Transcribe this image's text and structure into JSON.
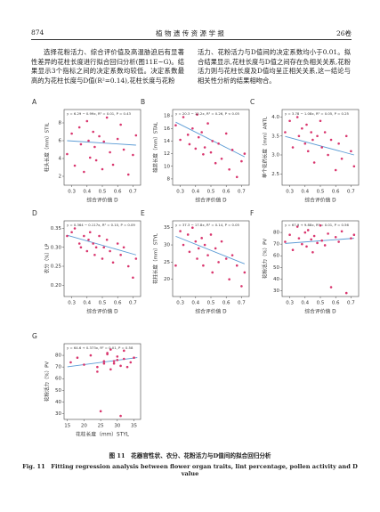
{
  "header": {
    "page": "874",
    "journal": "植 物 遗 传 资 源 学 报",
    "volume": "26卷"
  },
  "body": {
    "left": "选择花粉活力、综合评价值及高温胁迫后有显著性差异的花柱长度进行拟合回归分析(图11E~G)。结果显示3个指标之间的决定系数均较低。决定系数最高的为花柱长度与D值(R²=0.14),花柱长度与花粉",
    "right": "活力、花粉活力与D值间的决定系数均小于0.01。拟合结果显示,花柱长度与D值之间存在负相关关系,花粉活力则与花柱长度及D值均呈正相关关系,这一结论与相关性分析的结果相吻合。"
  },
  "caption": {
    "zh": "图 11　花器官性状、衣分、花粉活力与D值间的拟合回归分析",
    "en": "Fig. 11　Fitting regression analysis between flower organ traits, lint percentage, pollen activity and D value"
  },
  "chart_data": [
    {
      "type": "scatter",
      "panel": "A",
      "equation": "y = 6.29 − 0.99x, R² = 0.01, P = 0.43",
      "xlabel": "综合评价值 D",
      "ylabel": "柱头长度（mm）STIL",
      "x": [
        0.27,
        0.3,
        0.32,
        0.35,
        0.36,
        0.38,
        0.4,
        0.41,
        0.42,
        0.44,
        0.45,
        0.46,
        0.48,
        0.5,
        0.51,
        0.53,
        0.55,
        0.57,
        0.6,
        0.62,
        0.64,
        0.67,
        0.7,
        0.72
      ],
      "y": [
        4.5,
        6.8,
        3.2,
        7.5,
        5.6,
        2.5,
        8.2,
        6.0,
        4.1,
        7.0,
        5.3,
        3.8,
        6.5,
        2.8,
        5.9,
        8.6,
        4.7,
        3.3,
        6.2,
        7.8,
        5.0,
        2.2,
        4.4,
        6.6
      ],
      "trendline": {
        "x": [
          0.27,
          0.72
        ],
        "y": [
          6.0,
          5.5
        ]
      },
      "xlim": [
        0.25,
        0.75
      ],
      "ylim": [
        1,
        9.5
      ],
      "xticks": [
        0.3,
        0.4,
        0.5,
        0.6,
        0.7
      ],
      "yticks": [
        2,
        4,
        6,
        8
      ],
      "color": "#d9366e",
      "line_color": "#5b9bd5"
    },
    {
      "type": "scatter",
      "panel": "B",
      "equation": "y = 20.3 − 12.2x, R² = 0.26, P < 0.05",
      "xlabel": "综合评价值 D",
      "ylabel": "雄蕊长度（mm）STAL",
      "x": [
        0.27,
        0.3,
        0.32,
        0.35,
        0.36,
        0.38,
        0.4,
        0.41,
        0.42,
        0.44,
        0.45,
        0.46,
        0.48,
        0.5,
        0.51,
        0.53,
        0.55,
        0.57,
        0.6,
        0.62,
        0.64,
        0.67,
        0.7,
        0.72
      ],
      "y": [
        16.5,
        14.2,
        17.8,
        15.0,
        13.5,
        16.0,
        12.8,
        18.2,
        14.6,
        15.4,
        11.9,
        13.0,
        16.8,
        12.2,
        14.0,
        10.5,
        13.6,
        11.2,
        15.2,
        9.5,
        12.6,
        8.3,
        10.8,
        12.0
      ],
      "trendline": {
        "x": [
          0.27,
          0.72
        ],
        "y": [
          17.0,
          11.5
        ]
      },
      "xlim": [
        0.25,
        0.75
      ],
      "ylim": [
        7,
        19
      ],
      "xticks": [
        0.3,
        0.4,
        0.5,
        0.6,
        0.7
      ],
      "yticks": [
        8,
        10,
        12,
        14,
        16,
        18
      ],
      "color": "#d9366e",
      "line_color": "#5b9bd5"
    },
    {
      "type": "scatter",
      "panel": "C",
      "equation": "y = 3.78 − 1.08x, R² = 0.05, P = 0.25",
      "xlabel": "综合评价值 D",
      "ylabel": "单个花药长度（mm）ANTL",
      "x": [
        0.27,
        0.3,
        0.32,
        0.35,
        0.36,
        0.38,
        0.4,
        0.41,
        0.42,
        0.44,
        0.45,
        0.46,
        0.48,
        0.5,
        0.51,
        0.53,
        0.55,
        0.57,
        0.6,
        0.62,
        0.64,
        0.67,
        0.7,
        0.72
      ],
      "y": [
        3.6,
        3.9,
        3.2,
        4.0,
        3.5,
        3.7,
        3.3,
        3.8,
        3.1,
        3.6,
        3.4,
        2.8,
        3.5,
        3.9,
        3.2,
        3.6,
        3.0,
        3.4,
        2.6,
        3.3,
        2.9,
        3.5,
        3.1,
        2.7
      ],
      "trendline": {
        "x": [
          0.27,
          0.72
        ],
        "y": [
          3.49,
          3.0
        ]
      },
      "xlim": [
        0.25,
        0.75
      ],
      "ylim": [
        2.2,
        4.2
      ],
      "xticks": [
        0.3,
        0.4,
        0.5,
        0.6,
        0.7
      ],
      "yticks": [
        2.5,
        {
          "value": 3,
          "label": "3.0"
        },
        3.5,
        {
          "value": 4,
          "label": "4.0"
        }
      ],
      "color": "#d9366e",
      "line_color": "#5b9bd5"
    },
    {
      "type": "scatter",
      "panel": "D",
      "equation": "y = 0.364 − 0.117x, R² = 0.10, P = 0.09",
      "xlabel": "综合评价值 D",
      "ylabel": "衣分（%）LP",
      "x": [
        0.27,
        0.3,
        0.32,
        0.35,
        0.36,
        0.38,
        0.4,
        0.41,
        0.42,
        0.44,
        0.45,
        0.46,
        0.48,
        0.5,
        0.51,
        0.53,
        0.55,
        0.57,
        0.6,
        0.62,
        0.64,
        0.67,
        0.7,
        0.72
      ],
      "y": [
        0.33,
        0.34,
        0.35,
        0.31,
        0.3,
        0.33,
        0.29,
        0.32,
        0.34,
        0.31,
        0.28,
        0.3,
        0.33,
        0.27,
        0.3,
        0.32,
        0.29,
        0.26,
        0.31,
        0.28,
        0.3,
        0.25,
        0.22,
        0.27
      ],
      "trendline": {
        "x": [
          0.27,
          0.72
        ],
        "y": [
          0.332,
          0.28
        ]
      },
      "xlim": [
        0.25,
        0.75
      ],
      "ylim": [
        0.17,
        0.37
      ],
      "xticks": [
        0.3,
        0.4,
        0.5,
        0.6,
        0.7
      ],
      "yticks": [
        {
          "value": 0.2,
          "label": "0.20"
        },
        0.25,
        {
          "value": 0.3,
          "label": "0.30"
        },
        0.35
      ],
      "color": "#d9366e",
      "line_color": "#5b9bd5"
    },
    {
      "type": "scatter",
      "panel": "E",
      "equation": "y = 37.3 − 17.8x, R² = 0.14, P = 0.05",
      "xlabel": "综合评价值 D",
      "ylabel": "花柱长度（mm）STYL",
      "x": [
        0.27,
        0.3,
        0.32,
        0.35,
        0.36,
        0.38,
        0.4,
        0.41,
        0.42,
        0.44,
        0.45,
        0.46,
        0.48,
        0.5,
        0.51,
        0.53,
        0.55,
        0.57,
        0.6,
        0.62,
        0.64,
        0.67,
        0.7,
        0.72
      ],
      "y": [
        24,
        34,
        30,
        33,
        28,
        35,
        31,
        26,
        29,
        32,
        24,
        30,
        27,
        33,
        22,
        29,
        25,
        31,
        26,
        20,
        27,
        24,
        18,
        22
      ],
      "trendline": {
        "x": [
          0.27,
          0.72
        ],
        "y": [
          32.5,
          24.5
        ]
      },
      "xlim": [
        0.25,
        0.75
      ],
      "ylim": [
        15,
        37
      ],
      "xticks": [
        0.3,
        0.4,
        0.5,
        0.6,
        0.7
      ],
      "yticks": [
        20,
        25,
        30,
        35
      ],
      "color": "#d9366e",
      "line_color": "#5b9bd5"
    },
    {
      "type": "scatter",
      "panel": "F",
      "equation": "y = 67.9 + 9.88x, R² = 0.01, P = 0.56",
      "xlabel": "综合评价值 D",
      "ylabel": "花粉活力（%）PV",
      "x": [
        0.27,
        0.3,
        0.32,
        0.35,
        0.36,
        0.38,
        0.4,
        0.41,
        0.42,
        0.44,
        0.45,
        0.46,
        0.48,
        0.5,
        0.51,
        0.53,
        0.55,
        0.57,
        0.6,
        0.62,
        0.64,
        0.67,
        0.7,
        0.72
      ],
      "y": [
        72,
        78,
        65,
        85,
        75,
        70,
        80,
        68,
        82,
        74,
        63,
        77,
        71,
        86,
        73,
        69,
        79,
        33,
        76,
        72,
        81,
        28,
        75,
        78
      ],
      "trendline": {
        "x": [
          0.27,
          0.72
        ],
        "y": [
          70.6,
          75
        ]
      },
      "xlim": [
        0.25,
        0.75
      ],
      "ylim": [
        25,
        90
      ],
      "xticks": [
        0.3,
        0.4,
        0.5,
        0.6,
        0.7
      ],
      "yticks": [
        30,
        40,
        50,
        60,
        70,
        80
      ],
      "color": "#d9366e",
      "line_color": "#5b9bd5"
    },
    {
      "type": "scatter",
      "panel": "G",
      "equation": "y = 64.6 + 0.373x, R² = 0.01, P = 0.58",
      "xlabel": "花柱长度（mm）STYL",
      "ylabel": "花粉活力（%）PV",
      "x": [
        16,
        18,
        20,
        22,
        24,
        25,
        26,
        27,
        28,
        28,
        29,
        30,
        30,
        31,
        32,
        32,
        33,
        34,
        35,
        24,
        27,
        31,
        29,
        26
      ],
      "y": [
        74,
        78,
        72,
        80,
        70,
        32,
        75,
        82,
        85,
        68,
        73,
        79,
        76,
        71,
        84,
        77,
        70,
        74,
        78,
        66,
        81,
        28,
        75,
        73
      ],
      "trendline": {
        "x": [
          15,
          36
        ],
        "y": [
          70.2,
          78.1
        ]
      },
      "xlim": [
        14,
        37
      ],
      "ylim": [
        25,
        90
      ],
      "xticks": [
        15,
        20,
        25,
        30,
        35
      ],
      "yticks": [
        30,
        40,
        50,
        60,
        70,
        80
      ],
      "color": "#d9366e",
      "line_color": "#5b9bd5"
    }
  ]
}
